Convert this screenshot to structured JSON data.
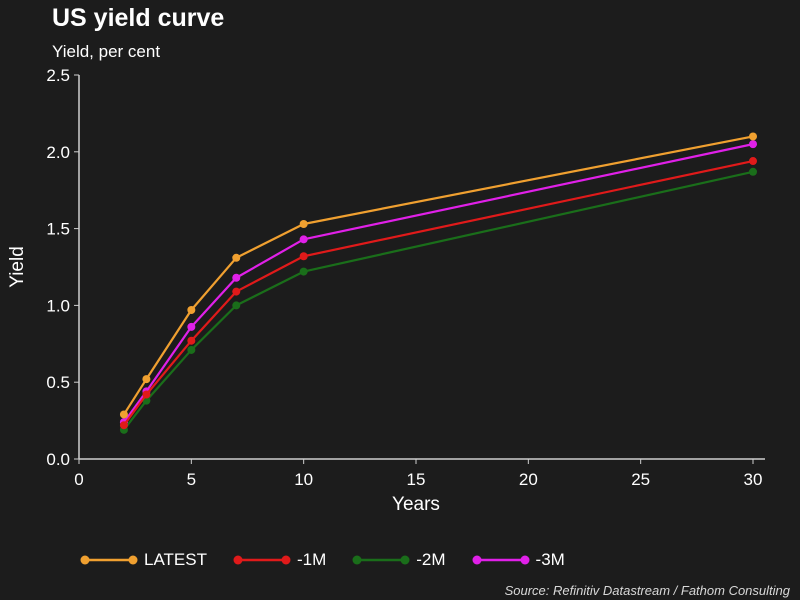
{
  "header": {
    "title": "US yield curve",
    "subtitle": "Yield, per cent"
  },
  "source": "Source: Refinitiv Datastream / Fathom Consulting",
  "chart_data": {
    "type": "line",
    "title": "US yield curve",
    "subtitle": "Yield, per cent",
    "xlabel": "Years",
    "ylabel": "Yield",
    "xlim": [
      0,
      30
    ],
    "ylim": [
      0,
      2.5
    ],
    "xticks": [
      0,
      5,
      10,
      15,
      20,
      25,
      30
    ],
    "yticks": [
      "0.0",
      "0.5",
      "1.0",
      "1.5",
      "2.0",
      "2.5"
    ],
    "grid": false,
    "legend_position": "bottom",
    "x": [
      2,
      3,
      5,
      7,
      10,
      30
    ],
    "series": [
      {
        "name": "LATEST",
        "color": "#f0a030",
        "values": [
          0.29,
          0.52,
          0.97,
          1.31,
          1.53,
          2.1
        ]
      },
      {
        "name": "-1M",
        "color": "#e01a1a",
        "values": [
          0.22,
          0.42,
          0.77,
          1.09,
          1.32,
          1.94
        ]
      },
      {
        "name": "-2M",
        "color": "#1a6e1a",
        "values": [
          0.19,
          0.38,
          0.71,
          1.0,
          1.22,
          1.87
        ]
      },
      {
        "name": "-3M",
        "color": "#e020e8",
        "values": [
          0.24,
          0.44,
          0.86,
          1.18,
          1.43,
          2.05
        ]
      }
    ]
  }
}
